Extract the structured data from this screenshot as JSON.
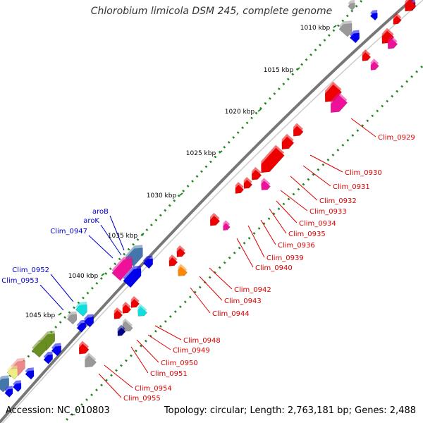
{
  "title": "Chlorobium limicola DSM 245, complete genome",
  "footer": {
    "accession": "Accession: NC_010803",
    "topology": "Topology: circular; Length: 2,763,181 bp; Genes: 2,488"
  },
  "scale_labels": [
    "1010 kbp",
    "1015 kbp",
    "1020 kbp",
    "1025 kbp",
    "1030 kbp",
    "1035 kbp",
    "1040 kbp",
    "1045 kbp"
  ],
  "forward_gene_labels": [
    "aroB",
    "aroK",
    "Clim_0947",
    "Clim_0952",
    "Clim_0953"
  ],
  "reverse_gene_labels": [
    "Clim_0929",
    "Clim_0930",
    "Clim_0931",
    "Clim_0932",
    "Clim_0933",
    "Clim_0934",
    "Clim_0935",
    "Clim_0936",
    "Clim_0939",
    "Clim_0940",
    "Clim_0942",
    "Clim_0943",
    "Clim_0944",
    "Clim_0948",
    "Clim_0949",
    "Clim_0950",
    "Clim_0951",
    "Clim_0954",
    "Clim_0955"
  ],
  "colors": {
    "forward_label": "#0000cc",
    "reverse_label": "#dd0000",
    "backbone": "#777777",
    "tick": "#228822",
    "blue_gene": "#0000ee",
    "red_gene": "#ee0000",
    "pink_gene": "#ee1199",
    "gray_gene": "#999999",
    "steel_gene": "#4477aa",
    "cyan_gene": "#11dddd",
    "olive_gene": "#6b8e23",
    "orange_gene": "#ff8800",
    "navy_gene": "#000088",
    "yellow_gene": "#eeee88",
    "salmon_gene": "#ee8888"
  }
}
